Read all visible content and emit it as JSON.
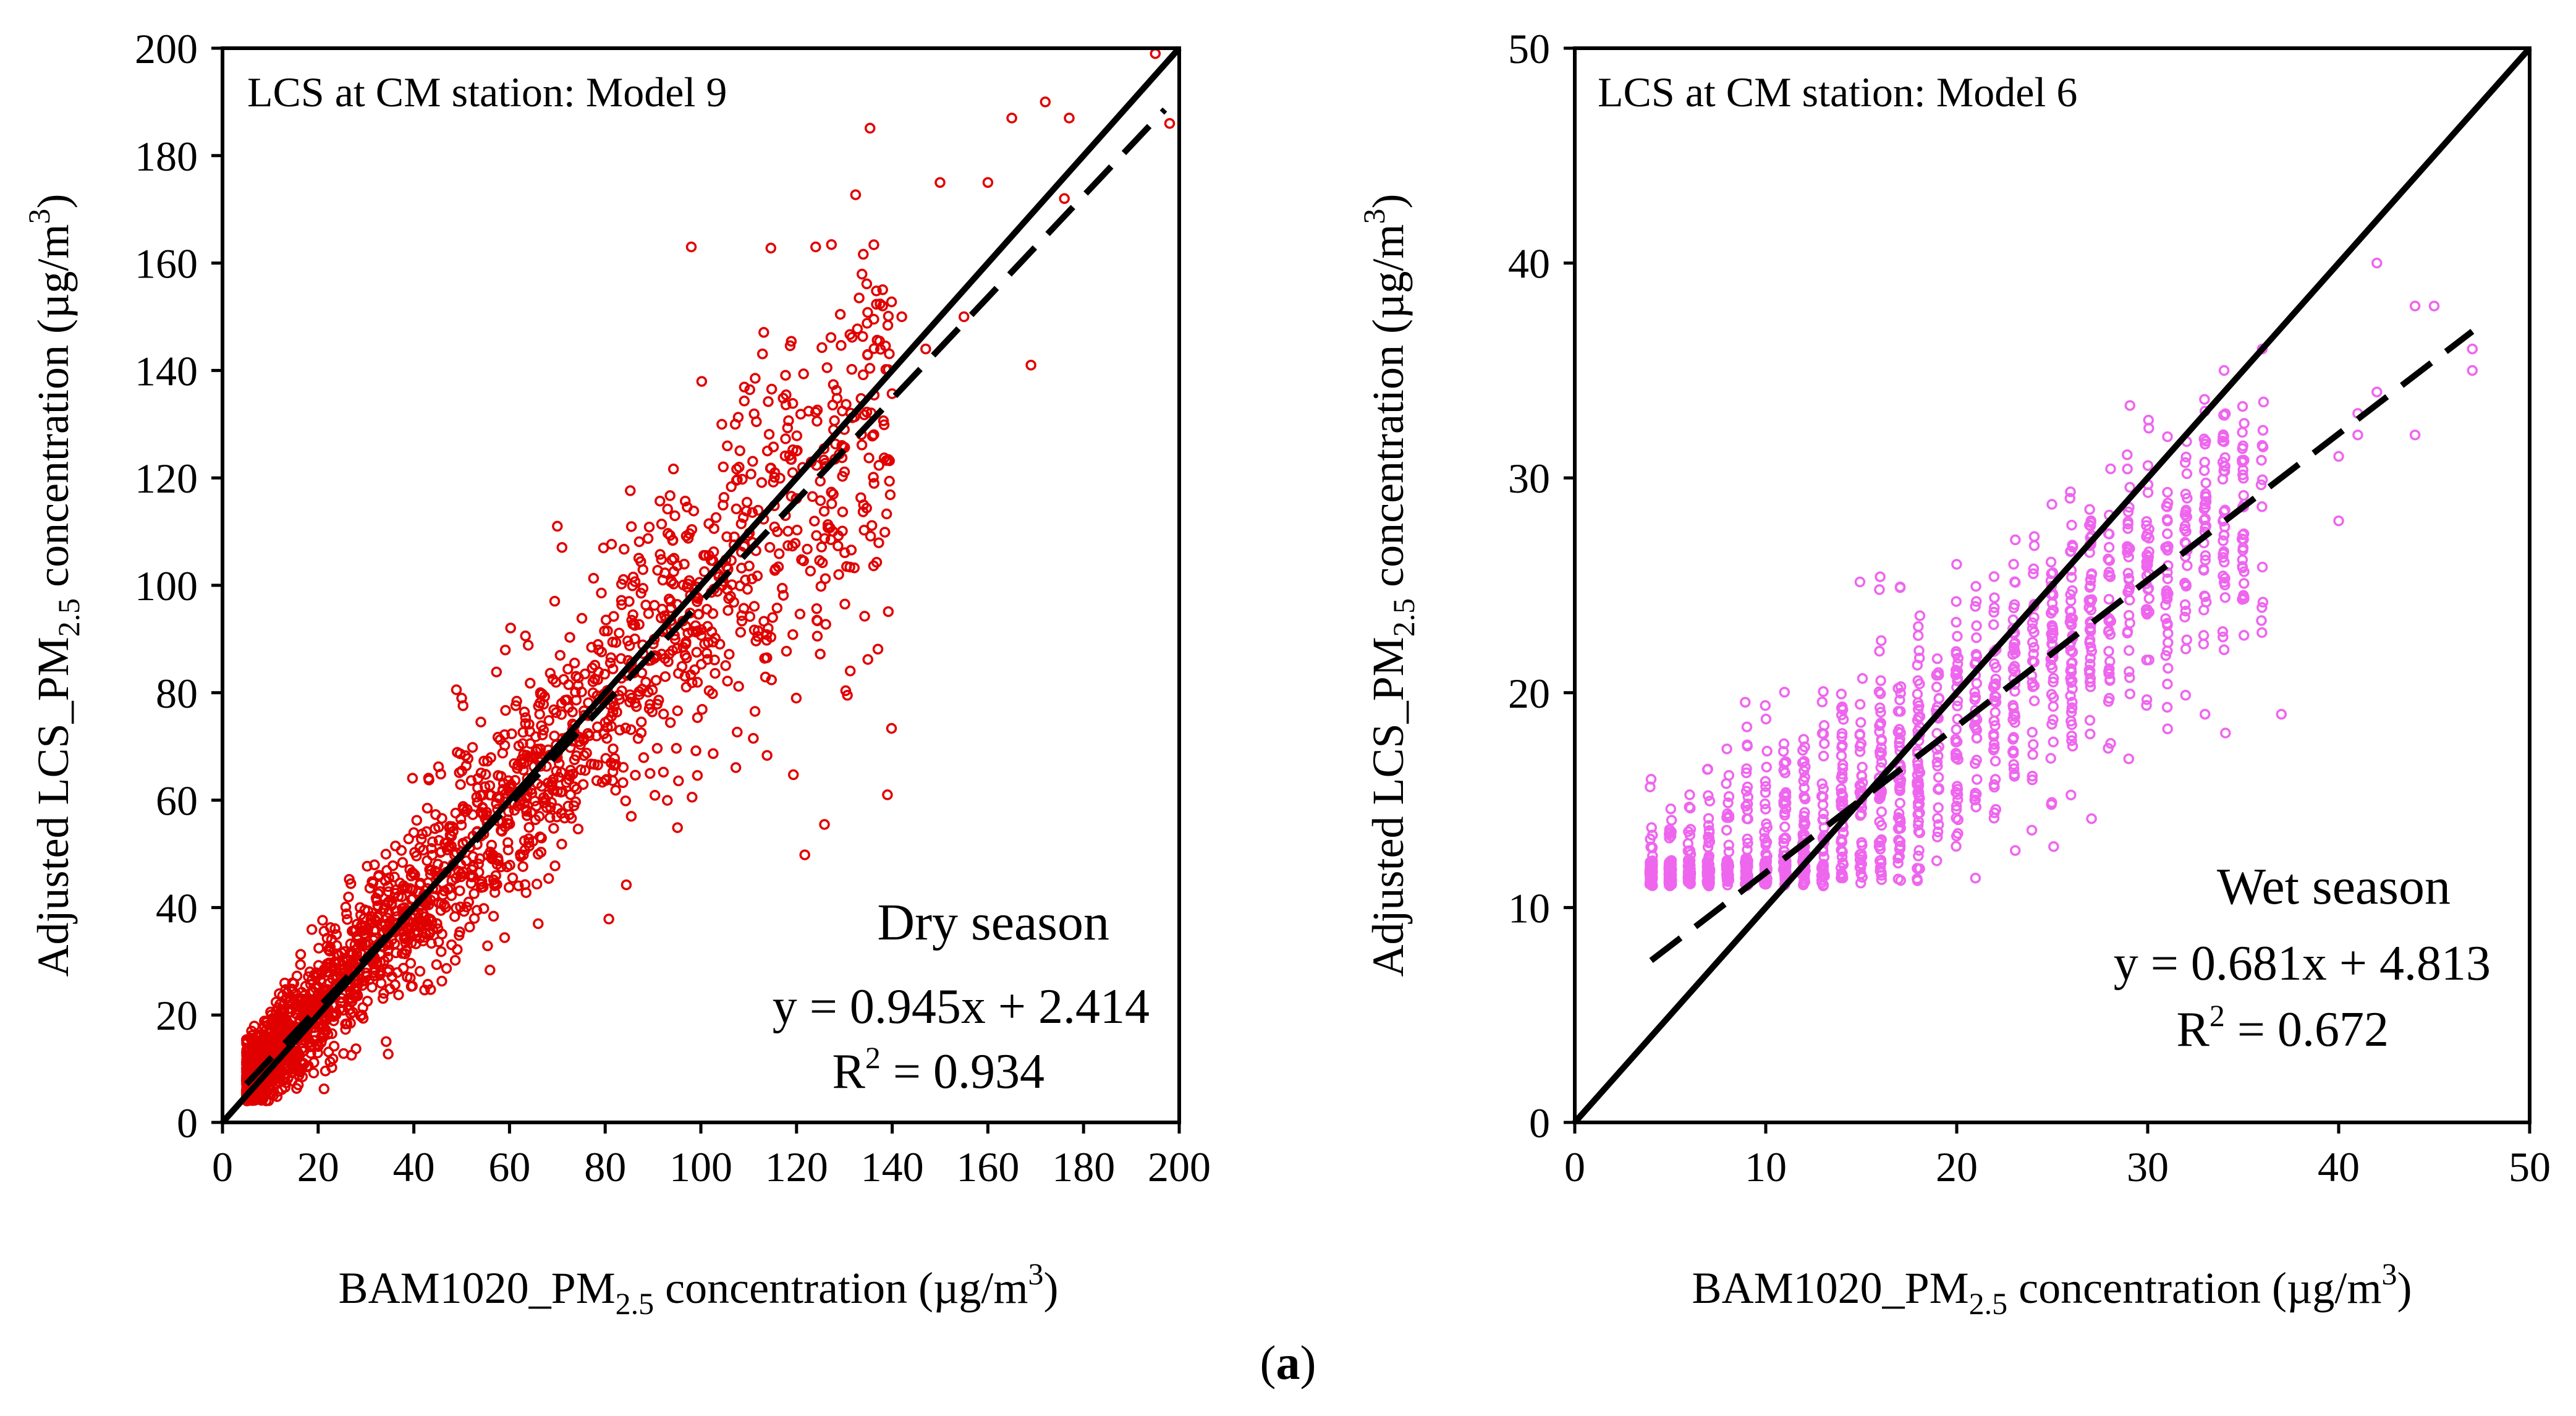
{
  "caption": {
    "open": "(",
    "letter": "a",
    "close": ")"
  },
  "chart_data": [
    {
      "type": "scatter",
      "title": "LCS at CM station: Model 9",
      "season": "Dry season",
      "equation": "y = 0.945x + 2.414",
      "r2_label": "R",
      "r2_value_text": " = 0.934",
      "xlabel": {
        "main": "BAM1020_PM",
        "sub": "2.5",
        "rest": "  concentration (µg/m",
        "sup": "3",
        "close": ")"
      },
      "ylabel": {
        "main": "Adjusted  LCS_PM",
        "sub": "2.5",
        "rest": " concentration (µg/m",
        "sup": "3",
        "close": ")"
      },
      "xlim": [
        0,
        200
      ],
      "ylim": [
        0,
        200
      ],
      "xticks": [
        0,
        20,
        40,
        60,
        80,
        100,
        120,
        140,
        160,
        180,
        200
      ],
      "yticks": [
        0,
        20,
        40,
        60,
        80,
        100,
        120,
        140,
        160,
        180,
        200
      ],
      "marker_color": "#e00000",
      "one_to_one": {
        "x": [
          0,
          200
        ],
        "y": [
          0,
          200
        ],
        "style": "solid"
      },
      "fit": {
        "slope": 0.945,
        "intercept": 2.414,
        "x_range": [
          5,
          197
        ],
        "style": "dashed"
      },
      "cloud": {
        "x_range": [
          5,
          140
        ],
        "count": 2200,
        "spread": 0.12,
        "base_spread": 3
      },
      "outliers": [
        [
          98,
          163
        ],
        [
          124,
          163
        ],
        [
          139,
          61
        ],
        [
          108,
          122
        ],
        [
          120,
          125
        ],
        [
          169,
          141
        ],
        [
          155,
          150
        ],
        [
          160,
          175
        ],
        [
          70,
          111
        ],
        [
          50,
          79
        ],
        [
          66,
          37
        ],
        [
          150,
          175
        ],
        [
          176,
          172
        ],
        [
          165,
          187
        ],
        [
          172,
          190
        ],
        [
          177,
          187
        ],
        [
          195,
          199
        ],
        [
          198,
          186
        ],
        [
          142,
          150
        ],
        [
          147,
          144
        ],
        [
          138,
          152
        ],
        [
          130,
          129
        ],
        [
          85,
          97
        ],
        [
          115,
          94
        ],
        [
          134,
          115
        ]
      ]
    },
    {
      "type": "scatter",
      "title": "LCS at CM station: Model 6",
      "season": "Wet season",
      "equation": "y = 0.681x + 4.813",
      "r2_label": "R",
      "r2_value_text": " = 0.672",
      "xlabel": {
        "main": "BAM1020_PM",
        "sub": "2.5",
        "rest": "  concentration (µg/m",
        "sup": "3",
        "close": ")"
      },
      "ylabel": {
        "main": "Adjusted  LCS_PM",
        "sub": "2.5",
        "rest": " concentration (µg/m",
        "sup": "3",
        "close": ")"
      },
      "xlim": [
        0,
        50
      ],
      "ylim": [
        0,
        50
      ],
      "xticks": [
        0,
        10,
        20,
        30,
        40,
        50
      ],
      "yticks": [
        0,
        10,
        20,
        30,
        40,
        50
      ],
      "marker_color": "#ee66ee",
      "one_to_one": {
        "x": [
          0,
          50
        ],
        "y": [
          0,
          50
        ],
        "style": "solid"
      },
      "fit": {
        "slope": 0.681,
        "intercept": 4.813,
        "x_range": [
          4,
          47
        ],
        "style": "dashed"
      },
      "cloud": {
        "x_range": [
          4,
          36
        ],
        "count": 1500,
        "floor": 11,
        "spread": 3.2
      },
      "outliers": [
        [
          42,
          40
        ],
        [
          44,
          38
        ],
        [
          45,
          38
        ],
        [
          47,
          36
        ],
        [
          47,
          35
        ],
        [
          42,
          34
        ],
        [
          41,
          33
        ],
        [
          41,
          32
        ],
        [
          40,
          31
        ],
        [
          40,
          28
        ],
        [
          44,
          32
        ],
        [
          37,
          19
        ],
        [
          34,
          22
        ],
        [
          34,
          35
        ],
        [
          36,
          36
        ],
        [
          33,
          19
        ]
      ]
    }
  ]
}
